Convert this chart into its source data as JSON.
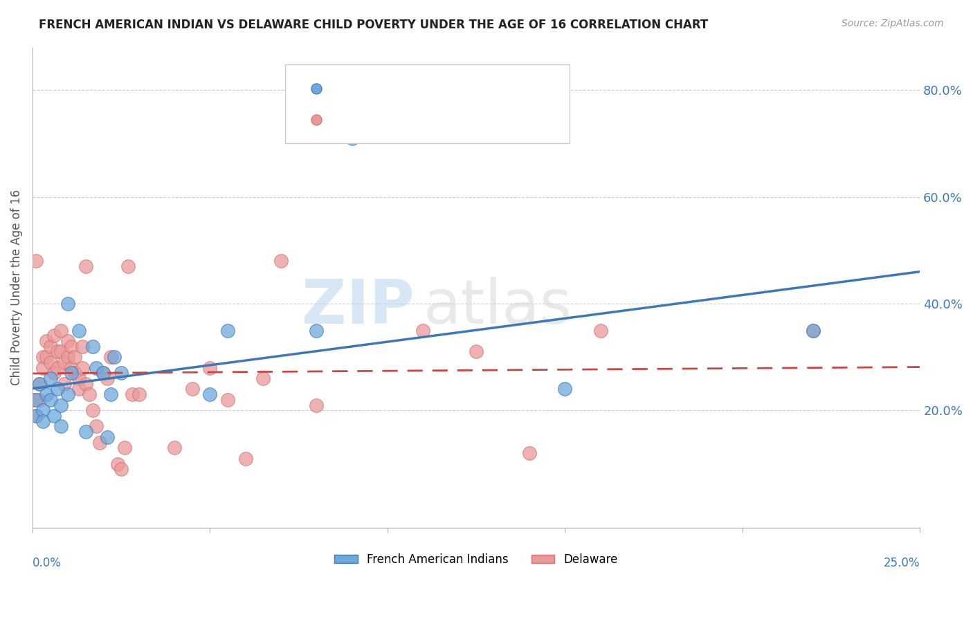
{
  "title": "FRENCH AMERICAN INDIAN VS DELAWARE CHILD POVERTY UNDER THE AGE OF 16 CORRELATION CHART",
  "source": "Source: ZipAtlas.com",
  "ylabel": "Child Poverty Under the Age of 16",
  "xlim": [
    0.0,
    0.25
  ],
  "ylim": [
    -0.02,
    0.88
  ],
  "color_blue": "#6fa8dc",
  "color_pink": "#ea9999",
  "color_blue_line": "#3d78b8",
  "color_pink_line": "#cc4444",
  "watermark_zip": "ZIP",
  "watermark_atlas": "atlas",
  "blue_x": [
    0.001,
    0.001,
    0.002,
    0.003,
    0.003,
    0.004,
    0.005,
    0.005,
    0.006,
    0.007,
    0.008,
    0.008,
    0.01,
    0.01,
    0.011,
    0.013,
    0.015,
    0.017,
    0.018,
    0.02,
    0.021,
    0.022,
    0.023,
    0.025,
    0.05,
    0.055,
    0.08,
    0.09,
    0.15,
    0.22
  ],
  "blue_y": [
    0.22,
    0.19,
    0.25,
    0.2,
    0.18,
    0.23,
    0.26,
    0.22,
    0.19,
    0.24,
    0.21,
    0.17,
    0.4,
    0.23,
    0.27,
    0.35,
    0.16,
    0.32,
    0.28,
    0.27,
    0.15,
    0.23,
    0.3,
    0.27,
    0.23,
    0.35,
    0.35,
    0.71,
    0.24,
    0.35
  ],
  "pink_x": [
    0.0005,
    0.001,
    0.001,
    0.002,
    0.002,
    0.003,
    0.003,
    0.004,
    0.004,
    0.005,
    0.005,
    0.006,
    0.006,
    0.007,
    0.007,
    0.008,
    0.008,
    0.009,
    0.009,
    0.01,
    0.01,
    0.011,
    0.011,
    0.012,
    0.012,
    0.013,
    0.013,
    0.014,
    0.014,
    0.015,
    0.015,
    0.016,
    0.017,
    0.018,
    0.019,
    0.02,
    0.021,
    0.022,
    0.024,
    0.025,
    0.026,
    0.027,
    0.028,
    0.03,
    0.04,
    0.045,
    0.05,
    0.055,
    0.06,
    0.065,
    0.07,
    0.08,
    0.11,
    0.125,
    0.14,
    0.16,
    0.22
  ],
  "pink_y": [
    0.22,
    0.19,
    0.48,
    0.25,
    0.22,
    0.3,
    0.28,
    0.33,
    0.3,
    0.32,
    0.29,
    0.27,
    0.34,
    0.31,
    0.28,
    0.35,
    0.31,
    0.29,
    0.25,
    0.33,
    0.3,
    0.28,
    0.32,
    0.3,
    0.27,
    0.26,
    0.24,
    0.32,
    0.28,
    0.47,
    0.25,
    0.23,
    0.2,
    0.17,
    0.14,
    0.27,
    0.26,
    0.3,
    0.1,
    0.09,
    0.13,
    0.47,
    0.23,
    0.23,
    0.13,
    0.24,
    0.28,
    0.22,
    0.11,
    0.26,
    0.48,
    0.21,
    0.35,
    0.31,
    0.12,
    0.35,
    0.35
  ]
}
